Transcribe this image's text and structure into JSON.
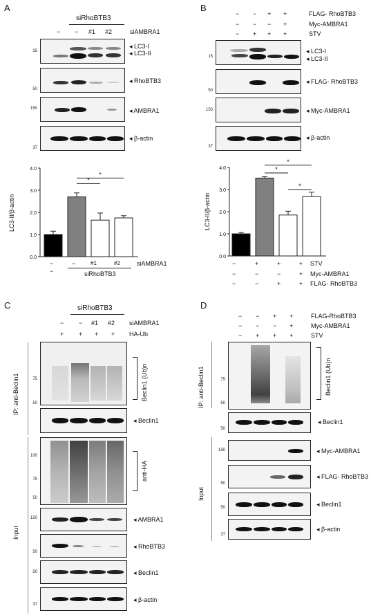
{
  "panels": {
    "a": "A",
    "b": "B",
    "c": "C",
    "d": "D"
  },
  "A": {
    "group_label": "siRhoBTB3",
    "lane_marks": [
      "−",
      "−",
      "#1",
      "#2"
    ],
    "lane_label": "siAMBRA1",
    "blots": [
      {
        "label": "LC3-I",
        "label2": "LC3-II",
        "mw": "15"
      },
      {
        "label": "RhoBTB3",
        "mw": "50"
      },
      {
        "label": "AMBRA1",
        "mw": "150"
      },
      {
        "label": "β-actin",
        "mw": "37"
      }
    ],
    "chart_xmarks": [
      "−",
      "−",
      "#1",
      "#2"
    ],
    "chart_xlabel": "siAMBRA1",
    "chart_group": "siRhoBTB3",
    "chart_below": "−"
  },
  "B": {
    "rows": [
      {
        "label": "FLAG- RhoBTB3",
        "marks": [
          "−",
          "−",
          "+",
          "+"
        ]
      },
      {
        "label": "Myc-AMBRA1",
        "marks": [
          "−",
          "−",
          "−",
          "+"
        ]
      },
      {
        "label": "STV",
        "marks": [
          "−",
          "+",
          "+",
          "+"
        ]
      }
    ],
    "blots": [
      {
        "label": "LC3-I",
        "label2": "LC3-II",
        "mw": "15"
      },
      {
        "label": "FLAG- RhoBTB3",
        "mw": "50"
      },
      {
        "label": "Myc-AMBRA1",
        "mw": "150"
      },
      {
        "label": "β-actin",
        "mw": "37"
      }
    ],
    "chart_rows": [
      {
        "label": "STV",
        "marks": [
          "−",
          "+",
          "+",
          "+"
        ]
      },
      {
        "label": "Myc-AMBRA1",
        "marks": [
          "−",
          "−",
          "−",
          "+"
        ]
      },
      {
        "label": "FLAG- RhoBTB3",
        "marks": [
          "−",
          "−",
          "+",
          "+"
        ]
      }
    ]
  },
  "C": {
    "group_label": "siRhoBTB3",
    "row1": {
      "label": "siAMBRA1",
      "marks": [
        "−",
        "−",
        "#1",
        "#2"
      ]
    },
    "row2": {
      "label": "HA-Ub",
      "marks": [
        "+",
        "+",
        "+",
        "+"
      ]
    },
    "ip_label": "IP: anti-Beclin1",
    "input_label": "Input",
    "ub_label": "Beclin1 (Ub)n",
    "antiha": "anti-HA",
    "blots": [
      {
        "label": "Beclin1",
        "mw1": "75",
        "mw2": "50"
      },
      {
        "label": "AMBRA1",
        "mw": "150"
      },
      {
        "label": "RhoBTB3",
        "mw": "50"
      },
      {
        "label": "Beclin1",
        "mw": "50"
      },
      {
        "label": "β-actin",
        "mw": "37"
      }
    ],
    "ha_mw": [
      "100",
      "75",
      "50"
    ]
  },
  "D": {
    "rows": [
      {
        "label": "FLAG-RhoBTB3",
        "marks": [
          "−",
          "−",
          "+",
          "+"
        ]
      },
      {
        "label": "Myc-AMBRA1",
        "marks": [
          "−",
          "−",
          "−",
          "+"
        ]
      },
      {
        "label": "STV",
        "marks": [
          "−",
          "+",
          "+",
          "+"
        ]
      }
    ],
    "ip_label": "IP: anti-Beclin1",
    "input_label": "Input",
    "ub_label": "Beclin1 (Ub)n",
    "blots": [
      {
        "label": "Beclin1",
        "mw": "50"
      },
      {
        "label": "Myc-AMBRA1",
        "mw": "150"
      },
      {
        "label": "FLAG- RhoBTB3",
        "mw": "50"
      },
      {
        "label": "Beclin1",
        "mw": "50"
      },
      {
        "label": "β-actin",
        "mw": "37"
      }
    ],
    "ub_mw": [
      "75",
      "50"
    ]
  },
  "chart_data": [
    {
      "type": "bar",
      "ylabel": "LC3-II/β-actin",
      "ylim": [
        0,
        4.0
      ],
      "yticks": [
        "0.0",
        "1.0",
        "2.0",
        "3.0",
        "4.0"
      ],
      "values": [
        1.0,
        2.7,
        1.65,
        1.75
      ],
      "errors": [
        0.15,
        0.18,
        0.32,
        0.1
      ],
      "colors": [
        "#000000",
        "#808080",
        "#ffffff",
        "#ffffff"
      ],
      "significance": [
        "*",
        "*"
      ]
    },
    {
      "type": "bar",
      "ylabel": "LC3-II/β-actin",
      "ylim": [
        0,
        4.0
      ],
      "yticks": [
        "0.0",
        "1.0",
        "2.0",
        "3.0",
        "4.0"
      ],
      "values": [
        1.0,
        3.52,
        1.85,
        2.68
      ],
      "errors": [
        0.06,
        0.06,
        0.17,
        0.2
      ],
      "colors": [
        "#000000",
        "#808080",
        "#ffffff",
        "#ffffff"
      ],
      "significance": [
        "*",
        "*",
        "*"
      ]
    }
  ]
}
